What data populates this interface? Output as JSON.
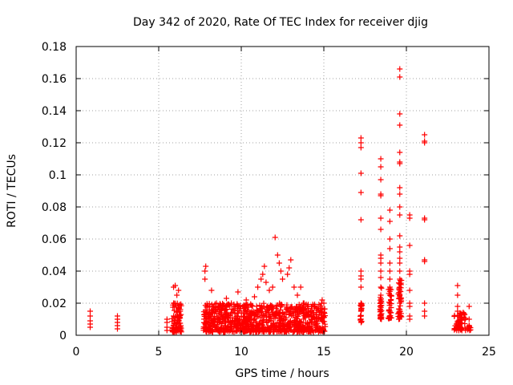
{
  "chart_data": {
    "type": "scatter",
    "title": "Day 342 of 2020, Rate Of TEC Index for receiver djig",
    "xlabel": "GPS time / hours",
    "ylabel": "ROTI / TECUs",
    "xlim": [
      0,
      25
    ],
    "ylim": [
      0,
      0.18
    ],
    "x_ticks": [
      0,
      5,
      10,
      15,
      20,
      25
    ],
    "y_ticks": [
      0,
      0.02,
      0.04,
      0.06,
      0.08,
      0.1,
      0.12,
      0.14,
      0.16,
      0.18
    ],
    "x_tick_labels": [
      "0",
      "5",
      "10",
      "15",
      "20",
      "25"
    ],
    "y_tick_labels": [
      "0",
      "0.02",
      "0.04",
      "0.06",
      "0.08",
      "0.1",
      "0.12",
      "0.14",
      "0.16",
      "0.18"
    ],
    "grid": true,
    "marker": "+",
    "marker_color": "#ff0000",
    "series": [
      {
        "name": "ROTI",
        "points": [
          [
            0.85,
            0.005
          ],
          [
            0.85,
            0.007
          ],
          [
            0.85,
            0.009
          ],
          [
            0.85,
            0.012
          ],
          [
            0.85,
            0.015
          ],
          [
            2.5,
            0.004
          ],
          [
            2.5,
            0.006
          ],
          [
            2.5,
            0.008
          ],
          [
            2.5,
            0.01
          ],
          [
            2.5,
            0.012
          ],
          [
            5.5,
            0.003
          ],
          [
            5.5,
            0.005
          ],
          [
            5.5,
            0.008
          ],
          [
            5.5,
            0.01
          ],
          [
            5.9,
            0.006
          ],
          [
            5.9,
            0.012
          ],
          [
            5.9,
            0.02
          ],
          [
            5.9,
            0.03
          ],
          [
            6.0,
            0.031
          ],
          [
            6.05,
            0.018
          ],
          [
            6.1,
            0.025
          ],
          [
            6.2,
            0.028
          ],
          [
            6.3,
            0.015
          ],
          [
            7.8,
            0.035
          ],
          [
            7.8,
            0.04
          ],
          [
            7.85,
            0.043
          ],
          [
            8.2,
            0.028
          ],
          [
            8.5,
            0.02
          ],
          [
            9.1,
            0.023
          ],
          [
            9.4,
            0.02
          ],
          [
            9.8,
            0.027
          ],
          [
            10.3,
            0.022
          ],
          [
            10.8,
            0.024
          ],
          [
            11.0,
            0.03
          ],
          [
            11.2,
            0.035
          ],
          [
            11.3,
            0.038
          ],
          [
            11.4,
            0.043
          ],
          [
            11.5,
            0.033
          ],
          [
            11.7,
            0.028
          ],
          [
            11.9,
            0.03
          ],
          [
            12.05,
            0.061
          ],
          [
            12.2,
            0.05
          ],
          [
            12.3,
            0.045
          ],
          [
            12.4,
            0.04
          ],
          [
            12.5,
            0.035
          ],
          [
            12.8,
            0.038
          ],
          [
            12.9,
            0.042
          ],
          [
            13.0,
            0.047
          ],
          [
            13.2,
            0.03
          ],
          [
            13.4,
            0.025
          ],
          [
            13.6,
            0.03
          ],
          [
            13.8,
            0.02
          ],
          [
            14.2,
            0.015
          ],
          [
            14.4,
            0.018
          ],
          [
            14.9,
            0.022
          ],
          [
            15.0,
            0.02
          ],
          [
            17.25,
            0.123
          ],
          [
            17.25,
            0.12
          ],
          [
            17.25,
            0.117
          ],
          [
            17.25,
            0.101
          ],
          [
            17.25,
            0.089
          ],
          [
            17.25,
            0.072
          ],
          [
            17.25,
            0.04
          ],
          [
            17.25,
            0.037
          ],
          [
            17.25,
            0.035
          ],
          [
            17.25,
            0.03
          ],
          [
            17.25,
            0.02
          ],
          [
            17.25,
            0.018
          ],
          [
            17.25,
            0.015
          ],
          [
            17.25,
            0.012
          ],
          [
            17.25,
            0.01
          ],
          [
            18.45,
            0.11
          ],
          [
            18.45,
            0.105
          ],
          [
            18.45,
            0.097
          ],
          [
            18.45,
            0.088
          ],
          [
            18.45,
            0.087
          ],
          [
            18.45,
            0.073
          ],
          [
            18.45,
            0.066
          ],
          [
            18.45,
            0.05
          ],
          [
            18.45,
            0.048
          ],
          [
            18.45,
            0.045
          ],
          [
            18.45,
            0.04
          ],
          [
            18.45,
            0.036
          ],
          [
            18.45,
            0.03
          ],
          [
            18.45,
            0.025
          ],
          [
            18.45,
            0.02
          ],
          [
            18.45,
            0.015
          ],
          [
            18.45,
            0.012
          ],
          [
            19.0,
            0.078
          ],
          [
            19.0,
            0.071
          ],
          [
            19.0,
            0.06
          ],
          [
            19.0,
            0.054
          ],
          [
            19.0,
            0.045
          ],
          [
            19.0,
            0.04
          ],
          [
            19.0,
            0.035
          ],
          [
            19.0,
            0.03
          ],
          [
            19.0,
            0.025
          ],
          [
            19.0,
            0.02
          ],
          [
            19.0,
            0.015
          ],
          [
            19.0,
            0.012
          ],
          [
            19.6,
            0.166
          ],
          [
            19.6,
            0.161
          ],
          [
            19.6,
            0.138
          ],
          [
            19.6,
            0.131
          ],
          [
            19.6,
            0.114
          ],
          [
            19.6,
            0.108
          ],
          [
            19.6,
            0.107
          ],
          [
            19.6,
            0.092
          ],
          [
            19.6,
            0.088
          ],
          [
            19.6,
            0.08
          ],
          [
            19.6,
            0.075
          ],
          [
            19.6,
            0.062
          ],
          [
            19.6,
            0.055
          ],
          [
            19.6,
            0.052
          ],
          [
            19.6,
            0.048
          ],
          [
            19.6,
            0.045
          ],
          [
            19.6,
            0.04
          ],
          [
            19.6,
            0.035
          ],
          [
            19.6,
            0.032
          ],
          [
            19.6,
            0.03
          ],
          [
            19.6,
            0.025
          ],
          [
            19.6,
            0.02
          ],
          [
            19.6,
            0.015
          ],
          [
            19.6,
            0.012
          ],
          [
            20.2,
            0.075
          ],
          [
            20.2,
            0.073
          ],
          [
            20.2,
            0.056
          ],
          [
            20.2,
            0.04
          ],
          [
            20.2,
            0.038
          ],
          [
            20.2,
            0.028
          ],
          [
            20.2,
            0.02
          ],
          [
            20.2,
            0.018
          ],
          [
            20.2,
            0.012
          ],
          [
            20.2,
            0.01
          ],
          [
            21.1,
            0.125
          ],
          [
            21.1,
            0.121
          ],
          [
            21.1,
            0.12
          ],
          [
            21.1,
            0.073
          ],
          [
            21.1,
            0.072
          ],
          [
            21.1,
            0.047
          ],
          [
            21.1,
            0.046
          ],
          [
            21.1,
            0.02
          ],
          [
            21.1,
            0.015
          ],
          [
            21.1,
            0.012
          ],
          [
            23.1,
            0.031
          ],
          [
            23.1,
            0.025
          ],
          [
            23.1,
            0.018
          ],
          [
            23.1,
            0.015
          ],
          [
            23.1,
            0.012
          ],
          [
            23.1,
            0.008
          ],
          [
            23.3,
            0.01
          ],
          [
            23.5,
            0.013
          ],
          [
            23.8,
            0.018
          ],
          [
            23.8,
            0.01
          ],
          [
            23.8,
            0.006
          ]
        ]
      }
    ],
    "dense_clusters": [
      {
        "x_from": 5.8,
        "x_to": 6.4,
        "y_min": 0.002,
        "y_max": 0.02,
        "count": 80
      },
      {
        "x_from": 7.7,
        "x_to": 15.1,
        "y_min": 0.002,
        "y_max": 0.02,
        "count": 900
      },
      {
        "x_from": 17.2,
        "x_to": 17.3,
        "y_min": 0.008,
        "y_max": 0.02,
        "count": 20
      },
      {
        "x_from": 18.4,
        "x_to": 18.5,
        "y_min": 0.01,
        "y_max": 0.03,
        "count": 30
      },
      {
        "x_from": 18.9,
        "x_to": 19.1,
        "y_min": 0.01,
        "y_max": 0.03,
        "count": 30
      },
      {
        "x_from": 19.5,
        "x_to": 19.7,
        "y_min": 0.01,
        "y_max": 0.035,
        "count": 40
      },
      {
        "x_from": 22.9,
        "x_to": 23.6,
        "y_min": 0.003,
        "y_max": 0.015,
        "count": 50
      },
      {
        "x_from": 23.7,
        "x_to": 23.9,
        "y_min": 0.003,
        "y_max": 0.01,
        "count": 10
      }
    ]
  }
}
